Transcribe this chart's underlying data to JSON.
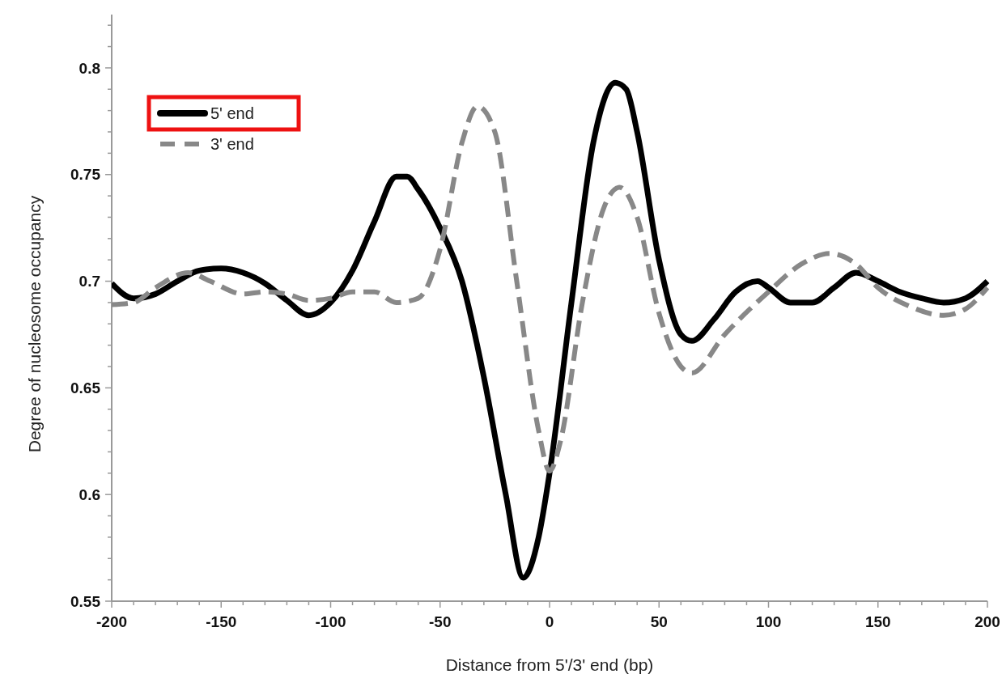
{
  "chart_data": {
    "type": "line",
    "xlabel": "Distance from 5'/3' end (bp)",
    "ylabel": "Degree of nucleosome occupancy",
    "xlim": [
      -200,
      200
    ],
    "xticks": [
      -200,
      {
        "value": -190,
        "label": null
      },
      {
        "value": -180,
        "label": null
      },
      {
        "value": -170,
        "label": null
      },
      {
        "value": -160,
        "label": null
      },
      -150,
      {
        "value": -140,
        "label": null
      },
      {
        "value": -130,
        "label": null
      },
      {
        "value": -120,
        "label": null
      },
      {
        "value": -110,
        "label": null
      },
      -100,
      {
        "value": -90,
        "label": null
      },
      {
        "value": -80,
        "label": null
      },
      {
        "value": -70,
        "label": null
      },
      {
        "value": -60,
        "label": null
      },
      -50,
      {
        "value": -40,
        "label": null
      },
      {
        "value": -30,
        "label": null
      },
      {
        "value": -20,
        "label": null
      },
      {
        "value": -10,
        "label": null
      },
      0,
      {
        "value": 10,
        "label": null
      },
      {
        "value": 20,
        "label": null
      },
      {
        "value": 30,
        "label": null
      },
      {
        "value": 40,
        "label": null
      },
      50,
      {
        "value": 60,
        "label": null
      },
      {
        "value": 70,
        "label": null
      },
      {
        "value": 80,
        "label": null
      },
      {
        "value": 90,
        "label": null
      },
      100,
      {
        "value": 110,
        "label": null
      },
      {
        "value": 120,
        "label": null
      },
      {
        "value": 130,
        "label": null
      },
      {
        "value": 140,
        "label": null
      },
      150,
      {
        "value": 160,
        "label": null
      },
      {
        "value": 170,
        "label": null
      },
      {
        "value": 180,
        "label": null
      },
      {
        "value": 190,
        "label": null
      },
      200
    ],
    "ylim": [
      0.55,
      0.825
    ],
    "yticks": [
      0.55,
      {
        "value": 0.56,
        "label": null
      },
      {
        "value": 0.57,
        "label": null
      },
      {
        "value": 0.58,
        "label": null
      },
      {
        "value": 0.59,
        "label": null
      },
      0.6,
      {
        "value": 0.61,
        "label": null
      },
      {
        "value": 0.62,
        "label": null
      },
      {
        "value": 0.63,
        "label": null
      },
      {
        "value": 0.64,
        "label": null
      },
      0.65,
      {
        "value": 0.66,
        "label": null
      },
      {
        "value": 0.67,
        "label": null
      },
      {
        "value": 0.68,
        "label": null
      },
      {
        "value": 0.69,
        "label": null
      },
      0.7,
      {
        "value": 0.71,
        "label": null
      },
      {
        "value": 0.72,
        "label": null
      },
      {
        "value": 0.73,
        "label": null
      },
      {
        "value": 0.74,
        "label": null
      },
      0.75,
      {
        "value": 0.76,
        "label": null
      },
      {
        "value": 0.77,
        "label": null
      },
      {
        "value": 0.78,
        "label": null
      },
      {
        "value": 0.79,
        "label": null
      },
      0.8,
      {
        "value": 0.81,
        "label": null
      },
      {
        "value": 0.82,
        "label": null
      }
    ],
    "grid": false,
    "legend": "top left",
    "marker": "none",
    "series": [
      {
        "name": "5' end",
        "color": "#000000",
        "line_style": "solid",
        "x": [
          -200,
          -190,
          -180,
          -170,
          -160,
          -150,
          -140,
          -130,
          -120,
          -110,
          -100,
          -90,
          -80,
          -70,
          -65,
          -60,
          -50,
          -40,
          -30,
          -20,
          -12,
          -5,
          0,
          10,
          20,
          30,
          35,
          40,
          50,
          60,
          65,
          75,
          85,
          95,
          100,
          110,
          120,
          130,
          140,
          150,
          160,
          170,
          180,
          190,
          200
        ],
        "values": [
          0.699,
          0.692,
          0.694,
          0.7,
          0.705,
          0.706,
          0.704,
          0.699,
          0.691,
          0.684,
          0.69,
          0.705,
          0.728,
          0.749,
          0.749,
          0.743,
          0.725,
          0.7,
          0.655,
          0.6,
          0.561,
          0.58,
          0.61,
          0.69,
          0.765,
          0.793,
          0.79,
          0.77,
          0.71,
          0.675,
          0.672,
          0.682,
          0.695,
          0.7,
          0.697,
          0.69,
          0.69,
          0.697,
          0.704,
          0.7,
          0.695,
          0.692,
          0.69,
          0.692,
          0.7
        ]
      },
      {
        "name": "3' end",
        "color": "#888888",
        "line_style": "dashed",
        "x": [
          -200,
          -190,
          -180,
          -165,
          -155,
          -140,
          -130,
          -120,
          -110,
          -100,
          -90,
          -80,
          -70,
          -60,
          -50,
          -40,
          -33,
          -25,
          -15,
          -5,
          0,
          5,
          15,
          25,
          32,
          40,
          50,
          60,
          65,
          80,
          100,
          115,
          128,
          140,
          150,
          165,
          180,
          190,
          200
        ],
        "values": [
          0.689,
          0.69,
          0.697,
          0.704,
          0.7,
          0.694,
          0.695,
          0.694,
          0.691,
          0.692,
          0.695,
          0.695,
          0.69,
          0.692,
          0.715,
          0.765,
          0.782,
          0.77,
          0.7,
          0.63,
          0.611,
          0.625,
          0.69,
          0.735,
          0.744,
          0.73,
          0.685,
          0.66,
          0.657,
          0.675,
          0.695,
          0.708,
          0.713,
          0.708,
          0.697,
          0.688,
          0.684,
          0.687,
          0.697
        ]
      }
    ]
  }
}
